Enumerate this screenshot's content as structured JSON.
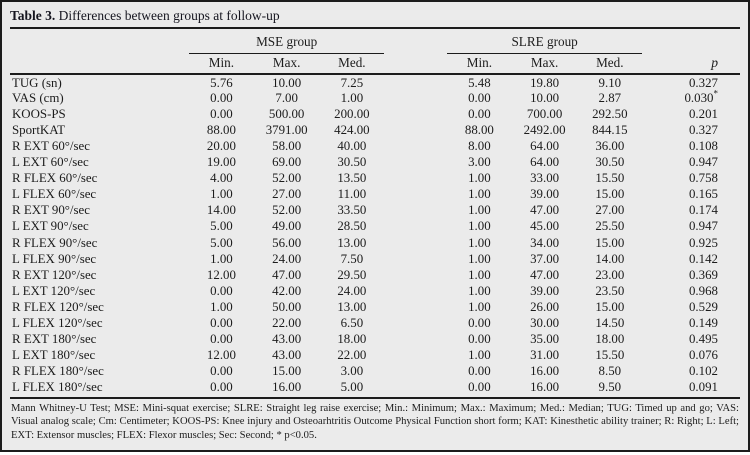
{
  "page_bg": "#ebebeb",
  "text_color": "#1c1c1c",
  "rule_color": "#1c1c1c",
  "table": {
    "title": {
      "bold": "Table 3.",
      "rest": " Differences between groups at follow-up"
    },
    "group_headers": [
      "MSE group",
      "SLRE group"
    ],
    "sub_headers": [
      "Min.",
      "Max.",
      "Med."
    ],
    "p_header": "p",
    "rows": [
      {
        "label": "TUG (sn)",
        "mse": [
          "5.76",
          "10.00",
          "7.25"
        ],
        "slre": [
          "5.48",
          "19.80",
          "9.10"
        ],
        "p": "0.327"
      },
      {
        "label": "VAS (cm)",
        "mse": [
          "0.00",
          "7.00",
          "1.00"
        ],
        "slre": [
          "0.00",
          "10.00",
          "2.87"
        ],
        "p": "0.030*"
      },
      {
        "label": "KOOS-PS",
        "mse": [
          "0.00",
          "500.00",
          "200.00"
        ],
        "slre": [
          "0.00",
          "700.00",
          "292.50"
        ],
        "p": "0.201"
      },
      {
        "label": "SportKAT",
        "mse": [
          "88.00",
          "3791.00",
          "424.00"
        ],
        "slre": [
          "88.00",
          "2492.00",
          "844.15"
        ],
        "p": "0.327"
      },
      {
        "label": "R EXT 60°/sec",
        "mse": [
          "20.00",
          "58.00",
          "40.00"
        ],
        "slre": [
          "8.00",
          "64.00",
          "36.00"
        ],
        "p": "0.108"
      },
      {
        "label": "L EXT 60°/sec",
        "mse": [
          "19.00",
          "69.00",
          "30.50"
        ],
        "slre": [
          "3.00",
          "64.00",
          "30.50"
        ],
        "p": "0.947"
      },
      {
        "label": "R FLEX 60°/sec",
        "mse": [
          "4.00",
          "52.00",
          "13.50"
        ],
        "slre": [
          "1.00",
          "33.00",
          "15.50"
        ],
        "p": "0.758"
      },
      {
        "label": "L FLEX 60°/sec",
        "mse": [
          "1.00",
          "27.00",
          "11.00"
        ],
        "slre": [
          "1.00",
          "39.00",
          "15.00"
        ],
        "p": "0.165"
      },
      {
        "label": "R EXT 90°/sec",
        "mse": [
          "14.00",
          "52.00",
          "33.50"
        ],
        "slre": [
          "1.00",
          "47.00",
          "27.00"
        ],
        "p": "0.174"
      },
      {
        "label": "L EXT 90°/sec",
        "mse": [
          "5.00",
          "49.00",
          "28.50"
        ],
        "slre": [
          "1.00",
          "45.00",
          "25.50"
        ],
        "p": "0.947"
      },
      {
        "label": "R FLEX 90°/sec",
        "mse": [
          "5.00",
          "56.00",
          "13.00"
        ],
        "slre": [
          "1.00",
          "34.00",
          "15.00"
        ],
        "p": "0.925"
      },
      {
        "label": "L FLEX 90°/sec",
        "mse": [
          "1.00",
          "24.00",
          "7.50"
        ],
        "slre": [
          "1.00",
          "37.00",
          "14.00"
        ],
        "p": "0.142"
      },
      {
        "label": "R EXT 120°/sec",
        "mse": [
          "12.00",
          "47.00",
          "29.50"
        ],
        "slre": [
          "1.00",
          "47.00",
          "23.00"
        ],
        "p": "0.369"
      },
      {
        "label": "L EXT 120°/sec",
        "mse": [
          "0.00",
          "42.00",
          "24.00"
        ],
        "slre": [
          "1.00",
          "39.00",
          "23.50"
        ],
        "p": "0.968"
      },
      {
        "label": "R FLEX 120°/sec",
        "mse": [
          "1.00",
          "50.00",
          "13.00"
        ],
        "slre": [
          "1.00",
          "26.00",
          "15.00"
        ],
        "p": "0.529"
      },
      {
        "label": "L FLEX 120°/sec",
        "mse": [
          "0.00",
          "22.00",
          "6.50"
        ],
        "slre": [
          "0.00",
          "30.00",
          "14.50"
        ],
        "p": "0.149"
      },
      {
        "label": "R EXT 180°/sec",
        "mse": [
          "0.00",
          "43.00",
          "18.00"
        ],
        "slre": [
          "0.00",
          "35.00",
          "18.00"
        ],
        "p": "0.495"
      },
      {
        "label": "L EXT 180°/sec",
        "mse": [
          "12.00",
          "43.00",
          "22.00"
        ],
        "slre": [
          "1.00",
          "31.00",
          "15.50"
        ],
        "p": "0.076"
      },
      {
        "label": "R FLEX 180°/sec",
        "mse": [
          "0.00",
          "15.00",
          "3.00"
        ],
        "slre": [
          "0.00",
          "16.00",
          "8.50"
        ],
        "p": "0.102"
      },
      {
        "label": "L FLEX 180°/sec",
        "mse": [
          "0.00",
          "16.00",
          "5.00"
        ],
        "slre": [
          "0.00",
          "16.00",
          "9.50"
        ],
        "p": "0.091"
      }
    ],
    "footnote": "Mann Whitney-U Test; MSE: Mini-squat exercise; SLRE: Straight leg raise exercise; Min.: Minimum; Max.: Maximum; Med.: Median; TUG: Timed up and go; VAS: Visual analog scale; Cm: Centimeter; KOOS-PS: Knee injury and Osteoarhtritis Outcome Physical Function short form; KAT: Kinesthetic ability trainer; R: Right; L: Left; EXT: Extensor muscles; FLEX: Flexor muscles; Sec: Second; * p<0.05."
  }
}
